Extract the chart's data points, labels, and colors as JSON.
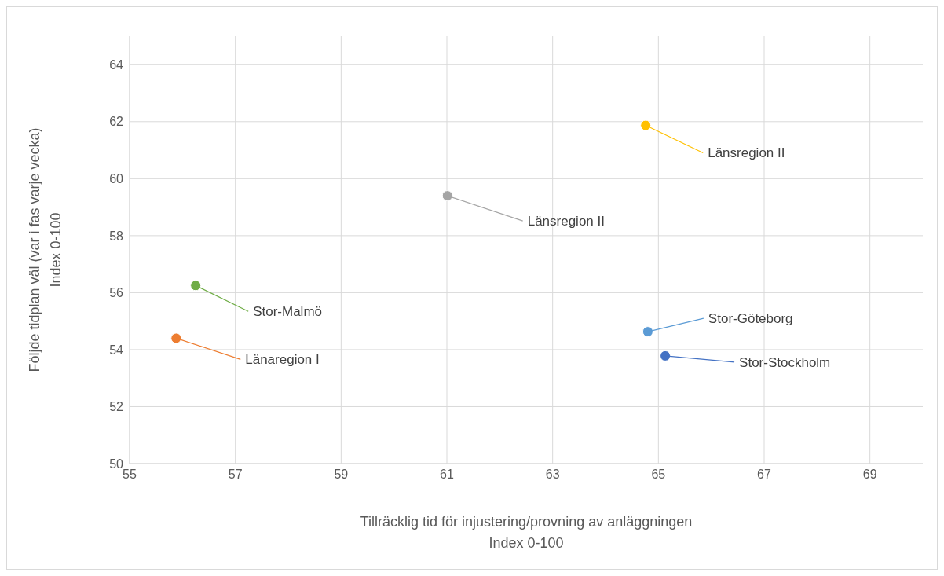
{
  "chart_data": {
    "type": "scatter",
    "xlabel": "Tillräcklig tid för injustering/provning av anläggningen\nIndex 0-100",
    "ylabel": "Följde tidplan väl (var i fas varje vecka)\nIndex 0-100",
    "xlim": [
      55,
      70
    ],
    "xticks": [
      55,
      57,
      59,
      61,
      63,
      65,
      67,
      69
    ],
    "ylim": [
      50,
      65
    ],
    "yticks": [
      50,
      52,
      54,
      56,
      58,
      60,
      62,
      64
    ],
    "grid": true,
    "marker": "circle",
    "series": [
      {
        "name": "Länsregion II",
        "color": "#ffc000",
        "x": [
          64.76
        ],
        "values": [
          61.87
        ]
      },
      {
        "name": "Länsregion II",
        "color": "#a5a5a5",
        "x": [
          61.01
        ],
        "values": [
          59.4
        ]
      },
      {
        "name": "Stor-Malmö",
        "color": "#70ad47",
        "x": [
          56.25
        ],
        "values": [
          56.25
        ]
      },
      {
        "name": "Länaregion I",
        "color": "#ed7d31",
        "x": [
          55.88
        ],
        "values": [
          54.4
        ]
      },
      {
        "name": "Stor-Göteborg",
        "color": "#5b9bd5",
        "x": [
          64.8
        ],
        "values": [
          54.63
        ]
      },
      {
        "name": "Stor-Stockholm",
        "color": "#4472c4",
        "x": [
          65.13
        ],
        "values": [
          53.78
        ]
      }
    ]
  }
}
